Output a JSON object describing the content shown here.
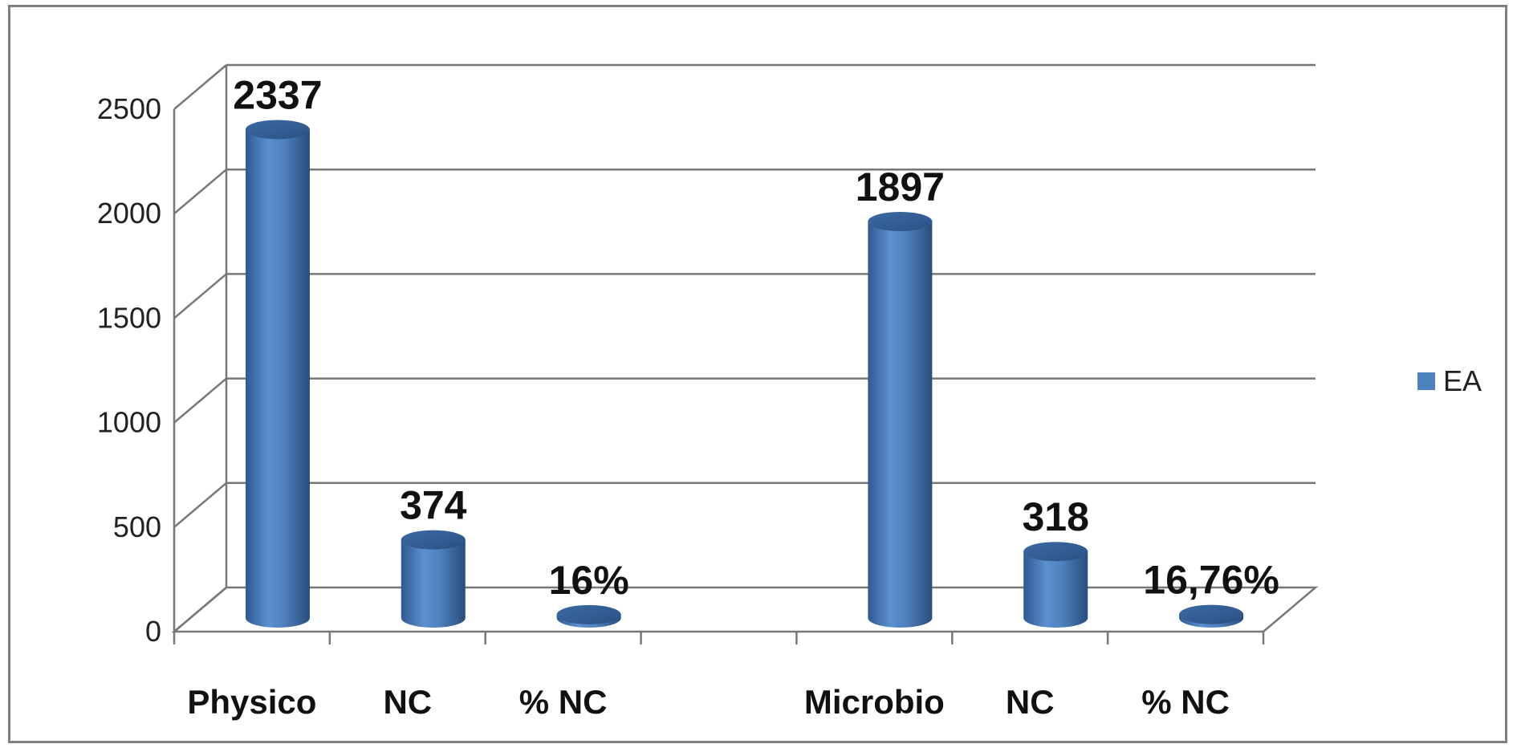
{
  "chart_data": {
    "type": "bar",
    "style": "3d-cylinder",
    "categories": [
      "Physico",
      "NC",
      "% NC",
      "",
      "Microbio",
      "NC",
      "% NC"
    ],
    "series": [
      {
        "name": "EA",
        "values": [
          2337,
          374,
          16,
          null,
          1897,
          318,
          16.76
        ],
        "data_labels": [
          "2337",
          "374",
          "16%",
          "",
          "1897",
          "318",
          "16,76%"
        ],
        "color": "#4f81bd"
      }
    ],
    "title": "",
    "xlabel": "",
    "ylabel": "",
    "ylim": [
      0,
      2500
    ],
    "yticks": [
      "0",
      "500",
      "1000",
      "1500",
      "2000",
      "2500"
    ],
    "grid": true,
    "legend_position": "right"
  }
}
